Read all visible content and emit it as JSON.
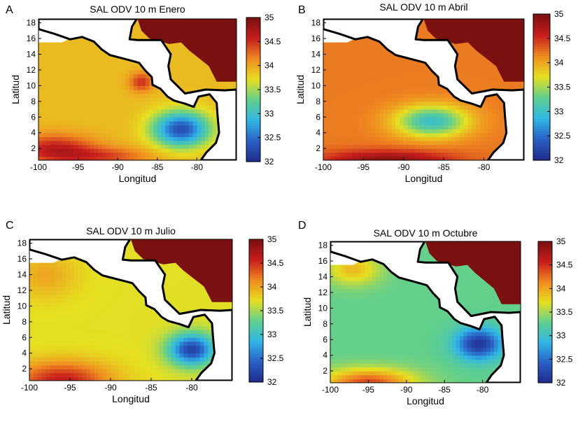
{
  "colorbar": {
    "range": [
      32,
      35
    ],
    "ticks": [
      32,
      32.5,
      33,
      33.5,
      34,
      34.5,
      35
    ],
    "tick_labels": [
      "32",
      "32.5",
      "33",
      "33.5",
      "34",
      "34.5",
      "35"
    ],
    "colormap": "jet",
    "colors": [
      "#1f2a8c",
      "#2a5fc4",
      "#2fb6e6",
      "#5fcf8f",
      "#e6e020",
      "#f08a20",
      "#c81d1d",
      "#7a1010"
    ]
  },
  "chart_data": [
    {
      "type": "heatmap",
      "letter": "A",
      "title": "SAL ODV 10 m Enero",
      "xlabel": "Longitud",
      "ylabel": "Latitud",
      "xlim": [
        -100,
        -75
      ],
      "ylim": [
        0.5,
        18.5
      ],
      "xticks": [
        -100,
        -95,
        -90,
        -85,
        -80
      ],
      "xtick_labels": [
        "-100",
        "-95",
        "-90",
        "-85",
        "-80"
      ],
      "yticks": [
        2,
        4,
        6,
        8,
        10,
        12,
        14,
        16,
        18
      ],
      "ytick_labels": [
        "2",
        "4",
        "6",
        "8",
        "10",
        "12",
        "14",
        "16",
        "18"
      ],
      "field": {
        "background": 33.9,
        "features": [
          {
            "lon": -82.0,
            "lat": 4.5,
            "value": 32.3,
            "sx": 3.5,
            "sy": 2.2
          },
          {
            "lon": -87.0,
            "lat": 10.5,
            "value": 34.5,
            "sx": 1.5,
            "sy": 1.2
          },
          {
            "lon": -98.0,
            "lat": 2.0,
            "value": 34.6,
            "sx": 5.0,
            "sy": 1.8
          },
          {
            "lon": -92.0,
            "lat": 1.0,
            "value": 34.4,
            "sx": 6.0,
            "sy": 1.2
          }
        ]
      }
    },
    {
      "type": "heatmap",
      "letter": "B",
      "title": "SAL ODV 10 m Abril",
      "xlabel": "Longitud",
      "ylabel": "Latitud",
      "xlim": [
        -100,
        -75
      ],
      "ylim": [
        0.5,
        18.5
      ],
      "xticks": [
        -100,
        -95,
        -90,
        -85,
        -80
      ],
      "xtick_labels": [
        "-100",
        "-95",
        "-90",
        "-85",
        "-80"
      ],
      "yticks": [
        2,
        4,
        6,
        8,
        10,
        12,
        14,
        16,
        18
      ],
      "ytick_labels": [
        "2",
        "4",
        "6",
        "8",
        "10",
        "12",
        "14",
        "16",
        "18"
      ],
      "field": {
        "background": 34.2,
        "features": [
          {
            "lon": -86.5,
            "lat": 5.5,
            "value": 33.0,
            "sx": 4.5,
            "sy": 2.0
          },
          {
            "lon": -92.0,
            "lat": 0.5,
            "value": 34.9,
            "sx": 8.0,
            "sy": 1.3
          }
        ]
      }
    },
    {
      "type": "heatmap",
      "letter": "C",
      "title": "SAL ODV 10 m Julio",
      "xlabel": "Longitud",
      "ylabel": "Latitud",
      "xlim": [
        -100,
        -75
      ],
      "ylim": [
        0.5,
        18.5
      ],
      "xticks": [
        -100,
        -95,
        -90,
        -85,
        -80
      ],
      "xtick_labels": [
        "-100",
        "-95",
        "-90",
        "-85",
        "-80"
      ],
      "yticks": [
        2,
        4,
        6,
        8,
        10,
        12,
        14,
        16,
        18
      ],
      "ytick_labels": [
        "2",
        "4",
        "6",
        "8",
        "10",
        "12",
        "14",
        "16",
        "18"
      ],
      "field": {
        "background": 33.7,
        "features": [
          {
            "lon": -80.0,
            "lat": 4.5,
            "value": 32.2,
            "sx": 2.8,
            "sy": 2.0
          },
          {
            "lon": -98.0,
            "lat": 14.0,
            "value": 34.0,
            "sx": 4.0,
            "sy": 3.0
          },
          {
            "lon": -96.0,
            "lat": 0.5,
            "value": 34.6,
            "sx": 6.0,
            "sy": 2.5
          }
        ]
      }
    },
    {
      "type": "heatmap",
      "letter": "D",
      "title": "SAL ODV 10 m Octubre",
      "xlabel": "Longitud",
      "ylabel": "Latitud",
      "xlim": [
        -100,
        -75
      ],
      "ylim": [
        0.5,
        18.5
      ],
      "xticks": [
        -100,
        -95,
        -90,
        -85,
        -80
      ],
      "xtick_labels": [
        "-100",
        "-95",
        "-90",
        "-85",
        "-80"
      ],
      "yticks": [
        2,
        4,
        6,
        8,
        10,
        12,
        14,
        16,
        18
      ],
      "ytick_labels": [
        "2",
        "4",
        "6",
        "8",
        "10",
        "12",
        "14",
        "16",
        "18"
      ],
      "field": {
        "background": 33.3,
        "features": [
          {
            "lon": -80.5,
            "lat": 5.5,
            "value": 32.1,
            "sx": 3.0,
            "sy": 2.0
          },
          {
            "lon": -97.0,
            "lat": 15.0,
            "value": 33.9,
            "sx": 3.5,
            "sy": 2.0
          },
          {
            "lon": -95.0,
            "lat": 0.5,
            "value": 34.4,
            "sx": 6.0,
            "sy": 1.8
          }
        ]
      }
    }
  ]
}
